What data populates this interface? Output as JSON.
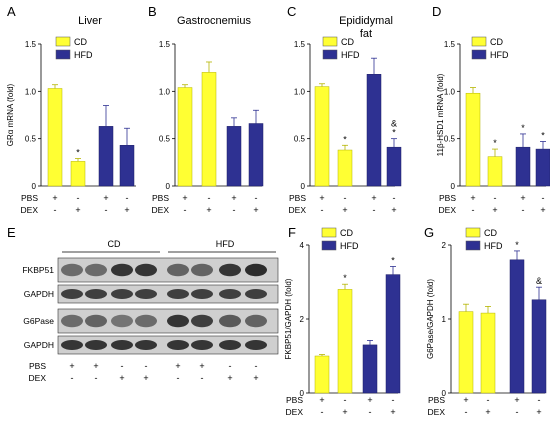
{
  "colors": {
    "cd": "#ffff33",
    "hfd": "#2e3192",
    "axis": "#000000",
    "blot_bg": "#cfcfcf"
  },
  "chart_data": [
    {
      "panel": "A",
      "type": "bar",
      "title": "Liver",
      "ylabel": "GRα mRNA  (fold)",
      "ylim": [
        0,
        1.5
      ],
      "yticks": [
        "0",
        "0.5",
        "1.0",
        "1.5"
      ],
      "legend": [
        "CD",
        "HFD"
      ],
      "bars": [
        {
          "group": "CD",
          "pbs": "+",
          "dex": "-",
          "value": 1.03,
          "err": 0.04,
          "mark": ""
        },
        {
          "group": "CD",
          "pbs": "-",
          "dex": "+",
          "value": 0.26,
          "err": 0.03,
          "mark": "*"
        },
        {
          "group": "HFD",
          "pbs": "+",
          "dex": "-",
          "value": 0.63,
          "err": 0.22,
          "mark": ""
        },
        {
          "group": "HFD",
          "pbs": "-",
          "dex": "+",
          "value": 0.43,
          "err": 0.18,
          "mark": ""
        }
      ]
    },
    {
      "panel": "B",
      "type": "bar",
      "title": "Gastrocnemius",
      "ylabel": "",
      "ylim": [
        0,
        1.5
      ],
      "yticks": [
        "0",
        "0.5",
        "1.0",
        "1.5"
      ],
      "legend": [],
      "bars": [
        {
          "group": "CD",
          "pbs": "+",
          "dex": "-",
          "value": 1.04,
          "err": 0.03,
          "mark": ""
        },
        {
          "group": "CD",
          "pbs": "-",
          "dex": "+",
          "value": 1.2,
          "err": 0.11,
          "mark": ""
        },
        {
          "group": "HFD",
          "pbs": "+",
          "dex": "-",
          "value": 0.63,
          "err": 0.09,
          "mark": ""
        },
        {
          "group": "HFD",
          "pbs": "-",
          "dex": "+",
          "value": 0.66,
          "err": 0.14,
          "mark": ""
        }
      ]
    },
    {
      "panel": "C",
      "type": "bar",
      "title": "Epididymal fat",
      "ylabel": "",
      "ylim": [
        0,
        1.5
      ],
      "yticks": [
        "0",
        "0.5",
        "1.0",
        "1.5"
      ],
      "legend": [
        "CD",
        "HFD"
      ],
      "bars": [
        {
          "group": "CD",
          "pbs": "+",
          "dex": "-",
          "value": 1.05,
          "err": 0.03,
          "mark": ""
        },
        {
          "group": "CD",
          "pbs": "-",
          "dex": "+",
          "value": 0.38,
          "err": 0.05,
          "mark": "*"
        },
        {
          "group": "HFD",
          "pbs": "+",
          "dex": "-",
          "value": 1.18,
          "err": 0.17,
          "mark": ""
        },
        {
          "group": "HFD",
          "pbs": "-",
          "dex": "+",
          "value": 0.41,
          "err": 0.09,
          "mark": "&\n*"
        }
      ]
    },
    {
      "panel": "D",
      "type": "bar",
      "title": "",
      "ylabel": "11β-HSD1  mRNA  (fold)",
      "ylim": [
        0,
        1.5
      ],
      "yticks": [
        "0",
        "0.5",
        "1.0",
        "1.5"
      ],
      "legend": [
        "CD",
        "HFD"
      ],
      "bars": [
        {
          "group": "CD",
          "pbs": "+",
          "dex": "-",
          "value": 0.98,
          "err": 0.06,
          "mark": ""
        },
        {
          "group": "CD",
          "pbs": "-",
          "dex": "+",
          "value": 0.31,
          "err": 0.08,
          "mark": "*"
        },
        {
          "group": "HFD",
          "pbs": "+",
          "dex": "-",
          "value": 0.41,
          "err": 0.14,
          "mark": "*"
        },
        {
          "group": "HFD",
          "pbs": "-",
          "dex": "+",
          "value": 0.39,
          "err": 0.08,
          "mark": "*"
        }
      ]
    },
    {
      "panel": "F",
      "type": "bar",
      "title": "",
      "ylabel": "FKBP51/GAPDH (fold)",
      "ylim": [
        0,
        4
      ],
      "yticks": [
        "0",
        "2",
        "4"
      ],
      "legend": [
        "CD",
        "HFD"
      ],
      "bars": [
        {
          "group": "CD",
          "pbs": "+",
          "dex": "-",
          "value": 1.0,
          "err": 0.04,
          "mark": ""
        },
        {
          "group": "CD",
          "pbs": "-",
          "dex": "+",
          "value": 2.8,
          "err": 0.14,
          "mark": "*"
        },
        {
          "group": "HFD",
          "pbs": "+",
          "dex": "-",
          "value": 1.3,
          "err": 0.12,
          "mark": ""
        },
        {
          "group": "HFD",
          "pbs": "-",
          "dex": "+",
          "value": 3.2,
          "err": 0.22,
          "mark": "*"
        }
      ]
    },
    {
      "panel": "G",
      "type": "bar",
      "title": "",
      "ylabel": "G6Pase/GAPDH (fold)",
      "ylim": [
        0,
        2
      ],
      "yticks": [
        "0",
        "1",
        "2"
      ],
      "legend": [
        "CD",
        "HFD"
      ],
      "bars": [
        {
          "group": "CD",
          "pbs": "+",
          "dex": "-",
          "value": 1.1,
          "err": 0.1,
          "mark": ""
        },
        {
          "group": "CD",
          "pbs": "-",
          "dex": "+",
          "value": 1.08,
          "err": 0.09,
          "mark": ""
        },
        {
          "group": "HFD",
          "pbs": "+",
          "dex": "-",
          "value": 1.8,
          "err": 0.12,
          "mark": "*"
        },
        {
          "group": "HFD",
          "pbs": "-",
          "dex": "+",
          "value": 1.26,
          "err": 0.17,
          "mark": "&"
        }
      ]
    }
  ],
  "row_labels": {
    "pbs": "PBS",
    "dex": "DEX"
  },
  "blot": {
    "panel": "E",
    "groups": [
      "CD",
      "HFD"
    ],
    "bands": [
      "FKBP51",
      "GAPDH",
      "G6Pase",
      "GAPDH"
    ],
    "pbs": [
      "+",
      "+",
      "-",
      "-",
      "+",
      "+",
      "-",
      "-"
    ],
    "dex": [
      "-",
      "-",
      "+",
      "+",
      "-",
      "-",
      "+",
      "+"
    ]
  }
}
